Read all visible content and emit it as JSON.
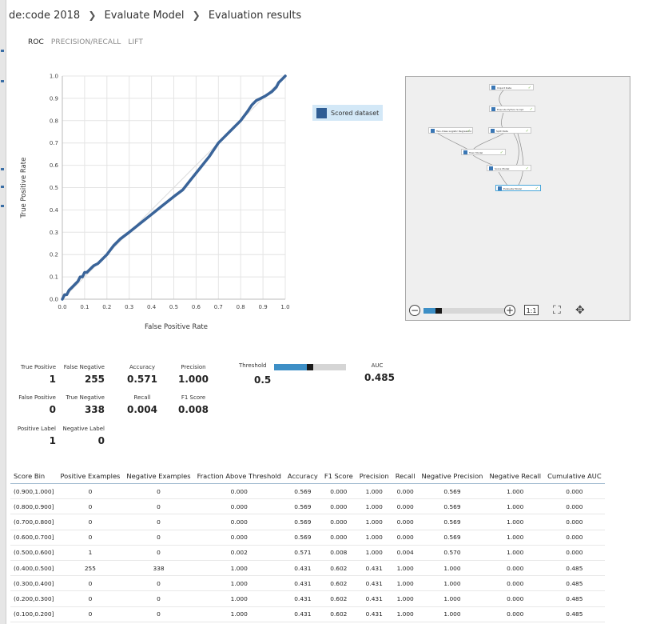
{
  "breadcrumb": [
    "de:code 2018",
    "Evaluate Model",
    "Evaluation results"
  ],
  "tabs": [
    "ROC",
    "PRECISION/RECALL",
    "LIFT"
  ],
  "chart_data": {
    "type": "line",
    "title": "",
    "xlabel": "False Positive Rate",
    "ylabel": "True Positive Rate",
    "xlim": [
      0,
      1
    ],
    "ylim": [
      0,
      1
    ],
    "xticks": [
      "0.0",
      "0.1",
      "0.2",
      "0.3",
      "0.4",
      "0.5",
      "0.6",
      "0.7",
      "0.8",
      "0.9",
      "1.0"
    ],
    "yticks": [
      "0.0",
      "0.1",
      "0.2",
      "0.3",
      "0.4",
      "0.5",
      "0.6",
      "0.7",
      "0.8",
      "0.9",
      "1.0"
    ],
    "grid": true,
    "legend_position": "right",
    "series": [
      {
        "name": "Scored dataset",
        "color": "#3a6499",
        "x": [
          0,
          0.01,
          0.02,
          0.03,
          0.04,
          0.06,
          0.07,
          0.08,
          0.09,
          0.1,
          0.11,
          0.12,
          0.14,
          0.16,
          0.2,
          0.23,
          0.26,
          0.3,
          0.35,
          0.4,
          0.45,
          0.5,
          0.54,
          0.58,
          0.62,
          0.66,
          0.7,
          0.73,
          0.76,
          0.8,
          0.83,
          0.85,
          0.87,
          0.89,
          0.91,
          0.94,
          0.96,
          0.97,
          0.98,
          0.99,
          1.0
        ],
        "y": [
          0,
          0.02,
          0.02,
          0.04,
          0.05,
          0.07,
          0.08,
          0.1,
          0.1,
          0.12,
          0.12,
          0.13,
          0.15,
          0.16,
          0.2,
          0.24,
          0.27,
          0.3,
          0.34,
          0.38,
          0.42,
          0.46,
          0.49,
          0.54,
          0.59,
          0.64,
          0.7,
          0.73,
          0.76,
          0.8,
          0.84,
          0.87,
          0.89,
          0.9,
          0.91,
          0.93,
          0.95,
          0.97,
          0.98,
          0.99,
          1.0
        ]
      }
    ]
  },
  "minimap": {
    "nodes": [
      "Import Data",
      "Execute Python Script",
      "Split Data",
      "Two-Class Logistic Regression",
      "Train Model",
      "Score Model",
      "Evaluate Model"
    ],
    "fit_label": "1:1",
    "zoom_level": 0.14
  },
  "metrics": {
    "true_positive": {
      "label": "True Positive",
      "value": "1"
    },
    "false_negative": {
      "label": "False Negative",
      "value": "255"
    },
    "accuracy": {
      "label": "Accuracy",
      "value": "0.571"
    },
    "precision": {
      "label": "Precision",
      "value": "1.000"
    },
    "false_positive": {
      "label": "False Positive",
      "value": "0"
    },
    "true_negative": {
      "label": "True Negative",
      "value": "338"
    },
    "recall": {
      "label": "Recall",
      "value": "0.004"
    },
    "f1_score": {
      "label": "F1 Score",
      "value": "0.008"
    },
    "positive_label": {
      "label": "Positive Label",
      "value": "1"
    },
    "negative_label": {
      "label": "Negative Label",
      "value": "0"
    },
    "threshold": {
      "label": "Threshold",
      "value": "0.5"
    },
    "auc": {
      "label": "AUC",
      "value": "0.485"
    }
  },
  "table": {
    "headers": [
      "Score Bin",
      "Positive Examples",
      "Negative Examples",
      "Fraction Above Threshold",
      "Accuracy",
      "F1 Score",
      "Precision",
      "Recall",
      "Negative Precision",
      "Negative Recall",
      "Cumulative AUC"
    ],
    "rows": [
      [
        "(0.900,1.000]",
        "0",
        "0",
        "0.000",
        "0.569",
        "0.000",
        "1.000",
        "0.000",
        "0.569",
        "1.000",
        "0.000"
      ],
      [
        "(0.800,0.900]",
        "0",
        "0",
        "0.000",
        "0.569",
        "0.000",
        "1.000",
        "0.000",
        "0.569",
        "1.000",
        "0.000"
      ],
      [
        "(0.700,0.800]",
        "0",
        "0",
        "0.000",
        "0.569",
        "0.000",
        "1.000",
        "0.000",
        "0.569",
        "1.000",
        "0.000"
      ],
      [
        "(0.600,0.700]",
        "0",
        "0",
        "0.000",
        "0.569",
        "0.000",
        "1.000",
        "0.000",
        "0.569",
        "1.000",
        "0.000"
      ],
      [
        "(0.500,0.600]",
        "1",
        "0",
        "0.002",
        "0.571",
        "0.008",
        "1.000",
        "0.004",
        "0.570",
        "1.000",
        "0.000"
      ],
      [
        "(0.400,0.500]",
        "255",
        "338",
        "1.000",
        "0.431",
        "0.602",
        "0.431",
        "1.000",
        "1.000",
        "0.000",
        "0.485"
      ],
      [
        "(0.300,0.400]",
        "0",
        "0",
        "1.000",
        "0.431",
        "0.602",
        "0.431",
        "1.000",
        "1.000",
        "0.000",
        "0.485"
      ],
      [
        "(0.200,0.300]",
        "0",
        "0",
        "1.000",
        "0.431",
        "0.602",
        "0.431",
        "1.000",
        "1.000",
        "0.000",
        "0.485"
      ],
      [
        "(0.100,0.200]",
        "0",
        "0",
        "1.000",
        "0.431",
        "0.602",
        "0.431",
        "1.000",
        "1.000",
        "0.000",
        "0.485"
      ]
    ]
  }
}
